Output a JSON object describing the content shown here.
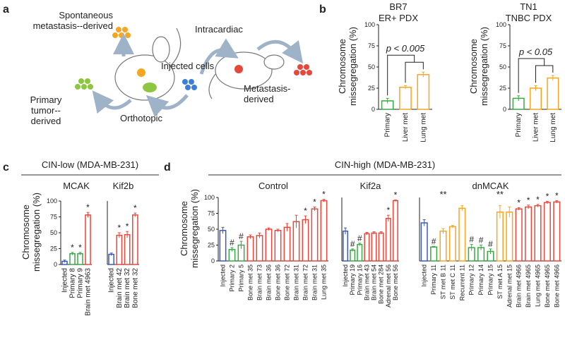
{
  "panel_labels": [
    "a",
    "b",
    "c",
    "d"
  ],
  "diagram": {
    "labels": [
      "Spontaneous metastasis--derived",
      "Primary tumor--derived",
      "Orthotopic",
      "Injected cells",
      "Intracardiac",
      "Metastasis-derived"
    ]
  },
  "chart_data": [
    {
      "type": "bar",
      "title": "BR7",
      "subtitle": "ER+ PDX",
      "ylabel": "Chromosome missegregation (%)",
      "annotation": "p < 0.005",
      "categories": [
        "Primary",
        "Liver met",
        "Lung met"
      ],
      "values": [
        10,
        26,
        41
      ],
      "errors": [
        3,
        2,
        3
      ],
      "colors": [
        "#3aa845",
        "#f5a623",
        "#f5a623"
      ],
      "ylim": [
        0,
        100
      ],
      "yticks": [
        0,
        25,
        50,
        75,
        100
      ]
    },
    {
      "type": "bar",
      "title": "TN1",
      "subtitle": "TNBC PDX",
      "ylabel": "Chromosome missegregation (%)",
      "annotation": "p < 0.05",
      "categories": [
        "Primary",
        "Liver met",
        "Lung met"
      ],
      "values": [
        13,
        25,
        37
      ],
      "errors": [
        3,
        3,
        3
      ],
      "colors": [
        "#3aa845",
        "#f5a623",
        "#f5a623"
      ],
      "ylim": [
        0,
        100
      ],
      "yticks": [
        0,
        25,
        50,
        75,
        100
      ]
    },
    {
      "type": "bar",
      "group_title": "CIN-low (MDA-MB-231)",
      "title": "MCAK",
      "ylabel": "Chromosome missegregation (%)",
      "categories": [
        "Injected",
        "Primary 8",
        "Primary 9",
        "Brain met 4963"
      ],
      "values": [
        5,
        17,
        17,
        78
      ],
      "errors": [
        2,
        2,
        2,
        4
      ],
      "colors": [
        "#3b5bb5",
        "#3aa845",
        "#3aa845",
        "#e8473c"
      ],
      "markers": [
        null,
        "*",
        "*",
        "*"
      ],
      "ylim": [
        0,
        100
      ],
      "yticks": [
        0,
        25,
        50,
        75,
        100
      ]
    },
    {
      "type": "bar",
      "title": "Kif2b",
      "categories": [
        "Injected",
        "Brain met 42",
        "Brain met 32",
        "Bone met 32"
      ],
      "values": [
        16,
        46,
        47,
        78
      ],
      "errors": [
        2,
        4,
        5,
        3
      ],
      "colors": [
        "#3b5bb5",
        "#e8473c",
        "#e8473c",
        "#e8473c"
      ],
      "markers": [
        null,
        "*",
        "*",
        "*"
      ],
      "ylim": [
        0,
        100
      ]
    },
    {
      "type": "bar",
      "group_title": "CIN-high (MDA-MB-231)",
      "title": "Control",
      "ylabel": "Chromosome missegregation (%)",
      "categories": [
        "Injected",
        "Primary 2",
        "Primary 5",
        "Bone met 35",
        "Brain met 73",
        "Brain met 36",
        "Bone met 36",
        "Bone met 72",
        "Brain met 31",
        "Brain met 72",
        "Brain met 31",
        "Lung met 35"
      ],
      "values": [
        48,
        18,
        25,
        38,
        40,
        50,
        48,
        53,
        62,
        65,
        82,
        95
      ],
      "errors": [
        5,
        3,
        6,
        3,
        4,
        2,
        2,
        6,
        10,
        6,
        3,
        2
      ],
      "colors": [
        "#3b5bb5",
        "#3aa845",
        "#3aa845",
        "#e8473c",
        "#e8473c",
        "#e8473c",
        "#e8473c",
        "#e8473c",
        "#e8473c",
        "#e8473c",
        "#e8473c",
        "#e8473c"
      ],
      "markers": [
        null,
        "#",
        "#",
        null,
        null,
        null,
        null,
        null,
        null,
        "*",
        "*",
        "*"
      ],
      "ylim": [
        0,
        100
      ],
      "yticks": [
        0,
        25,
        50,
        75,
        100
      ]
    },
    {
      "type": "bar",
      "title": "Kif2a",
      "categories": [
        "Injected",
        "Primary 19",
        "Primary 16",
        "Brain met 43",
        "Brain met 54",
        "Bone met 284",
        "Adrenal met 56",
        "Bone met 56"
      ],
      "values": [
        47,
        17,
        26,
        43,
        44,
        44,
        67,
        95
      ],
      "errors": [
        5,
        2,
        2,
        2,
        2,
        2,
        5,
        1
      ],
      "colors": [
        "#3b5bb5",
        "#3aa845",
        "#3aa845",
        "#e8473c",
        "#e8473c",
        "#e8473c",
        "#e8473c",
        "#e8473c"
      ],
      "markers": [
        null,
        "#",
        "#",
        null,
        null,
        null,
        "*",
        "*"
      ],
      "ylim": [
        0,
        100
      ]
    },
    {
      "type": "bar",
      "title": "dnMCAK",
      "annotations": [
        "**",
        "**"
      ],
      "categories": [
        "Injected",
        "Primary 11",
        "ST met B 11",
        "ST met C 11",
        "Recurrent 11",
        "Primary 12",
        "Primary 14",
        "Primary 15",
        "ST met A 15",
        "Adrenal met 15",
        "Brain met 4966",
        "Brain met 4965",
        "Lung met 4965",
        "Bone met 4965",
        "Bone met 4966"
      ],
      "values": [
        60,
        22,
        47,
        54,
        83,
        21,
        21,
        15,
        77,
        77,
        82,
        85,
        87,
        92,
        93
      ],
      "errors": [
        5,
        1,
        4,
        2,
        4,
        5,
        4,
        4,
        10,
        8,
        2,
        3,
        2,
        2,
        2
      ],
      "colors": [
        "#3b5bb5",
        "#3aa845",
        "#f5a623",
        "#f5a623",
        "#f5a623",
        "#3aa845",
        "#3aa845",
        "#3aa845",
        "#f5a623",
        "#f5a623",
        "#e8473c",
        "#e8473c",
        "#e8473c",
        "#e8473c",
        "#e8473c"
      ],
      "markers": [
        null,
        "#",
        null,
        null,
        null,
        "#",
        "#",
        "#",
        null,
        null,
        "*",
        "*",
        "*",
        "*",
        "*"
      ],
      "ylim": [
        0,
        100
      ]
    }
  ]
}
